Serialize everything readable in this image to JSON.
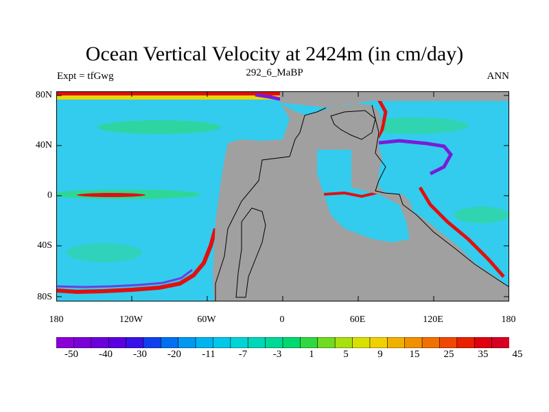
{
  "title": "Ocean Vertical Velocity at 2424m (in cm/day)",
  "subtitle": "292_6_MaBP",
  "left_label": "Expt = tfGwg",
  "right_label": "ANN",
  "lat_ticks": [
    "80N",
    "40N",
    "0",
    "40S",
    "80S"
  ],
  "lon_ticks": [
    "180",
    "120W",
    "60W",
    "0",
    "60E",
    "120E",
    "180"
  ],
  "colorbar": {
    "labels": [
      "-50",
      "-40",
      "-30",
      "-20",
      "-11",
      "-7",
      "-3",
      "1",
      "5",
      "9",
      "15",
      "25",
      "35",
      "45"
    ],
    "colors": [
      "#8a00d6",
      "#7a00d8",
      "#6a00da",
      "#5a00e0",
      "#3a10e8",
      "#1040ee",
      "#0070f0",
      "#0098f0",
      "#00b4f0",
      "#00c8e8",
      "#00d4d4",
      "#00d6b8",
      "#00d898",
      "#00d870",
      "#30d840",
      "#70dc20",
      "#a8e010",
      "#d8e000",
      "#f0d000",
      "#f0b000",
      "#f09000",
      "#f07000",
      "#f04800",
      "#e82000",
      "#e00010",
      "#d80020"
    ]
  },
  "colors": {
    "land": "#a0a0a0",
    "ocean_base": "#33ccee",
    "band_green": "#2fd887",
    "band_red": "#e01010",
    "band_yellow": "#e8d800",
    "band_purple": "#7b1bd8"
  }
}
